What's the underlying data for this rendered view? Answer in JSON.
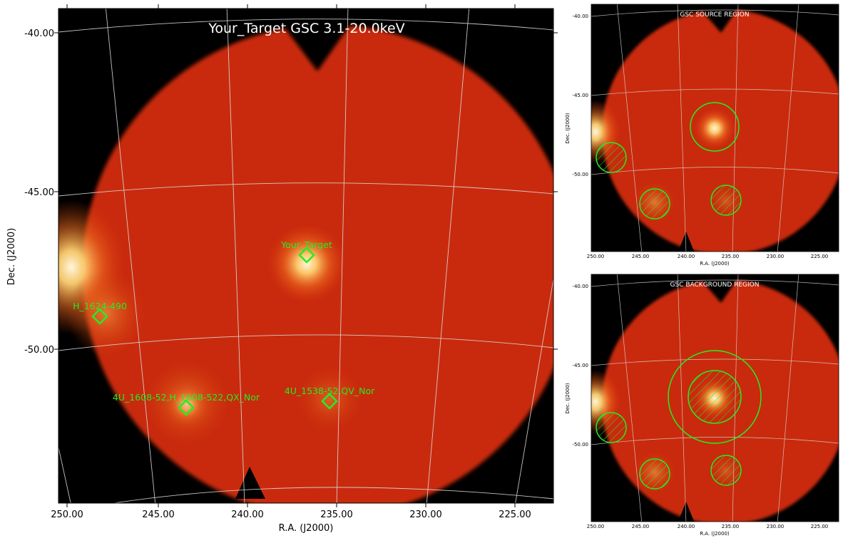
{
  "main": {
    "title": "Your_Target GSC 3.1-20.0keV",
    "xlabel": "R.A. (J2000)",
    "ylabel": "Dec. (J2000)",
    "x_ticks": [
      "250.00",
      "245.00",
      "240.00",
      "235.00",
      "230.00",
      "225.00"
    ],
    "y_ticks": [
      "-40.00",
      "-45.00",
      "-50.00"
    ],
    "sources": [
      {
        "label": "Your_Target"
      },
      {
        "label": "H_1624-490"
      },
      {
        "label": "4U_1608-52,H_1608-522,QX_Nor"
      },
      {
        "label": "4U_1538-52,QV_Nor"
      }
    ]
  },
  "source_region": {
    "title": "GSC SOURCE REGION",
    "xlabel": "R.A. (J2000)",
    "ylabel": "Dec. (J2000)",
    "x_ticks": [
      "250.00",
      "245.00",
      "240.00",
      "235.00",
      "230.00",
      "225.00"
    ],
    "y_ticks": [
      "-40.00",
      "-45.00",
      "-50.00"
    ]
  },
  "background_region": {
    "title": "GSC BACKGROUND REGION",
    "xlabel": "R.A. (J2000)",
    "ylabel": "Dec. (J2000)",
    "x_ticks": [
      "250.00",
      "245.00",
      "240.00",
      "235.00",
      "230.00",
      "225.00"
    ],
    "y_ticks": [
      "-40.00",
      "-45.00",
      "-50.00"
    ]
  },
  "colors": {
    "background": "#000000",
    "disk": "#c82a08",
    "glow": "#fff2d0",
    "grid": "#d8d8d8",
    "region": "#22ee22"
  }
}
